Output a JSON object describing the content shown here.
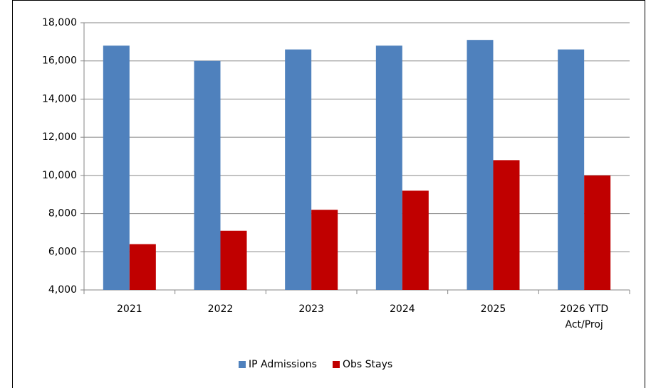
{
  "chart_data": {
    "type": "bar",
    "categories": [
      "2021",
      "2022",
      "2023",
      "2024",
      "2025",
      "2026  YTD Act/Proj"
    ],
    "series": [
      {
        "name": "IP Admissions",
        "color": "#4f81bd",
        "values": [
          16800,
          16000,
          16600,
          16800,
          17100,
          16600
        ]
      },
      {
        "name": "Obs Stays",
        "color": "#c00000",
        "values": [
          6400,
          7100,
          8200,
          9200,
          10800,
          10000
        ]
      }
    ],
    "ylim": [
      4000,
      18000
    ],
    "yticks": [
      {
        "value": 4000,
        "label": "4,000"
      },
      {
        "value": 6000,
        "label": "6,000"
      },
      {
        "value": 8000,
        "label": "8,000"
      },
      {
        "value": 10000,
        "label": "10,000"
      },
      {
        "value": 12000,
        "label": "12,000"
      },
      {
        "value": 14000,
        "label": "14,000"
      },
      {
        "value": 16000,
        "label": "16,000"
      },
      {
        "value": 18000,
        "label": "18,000"
      }
    ],
    "grid": true,
    "legend": "bottom"
  }
}
